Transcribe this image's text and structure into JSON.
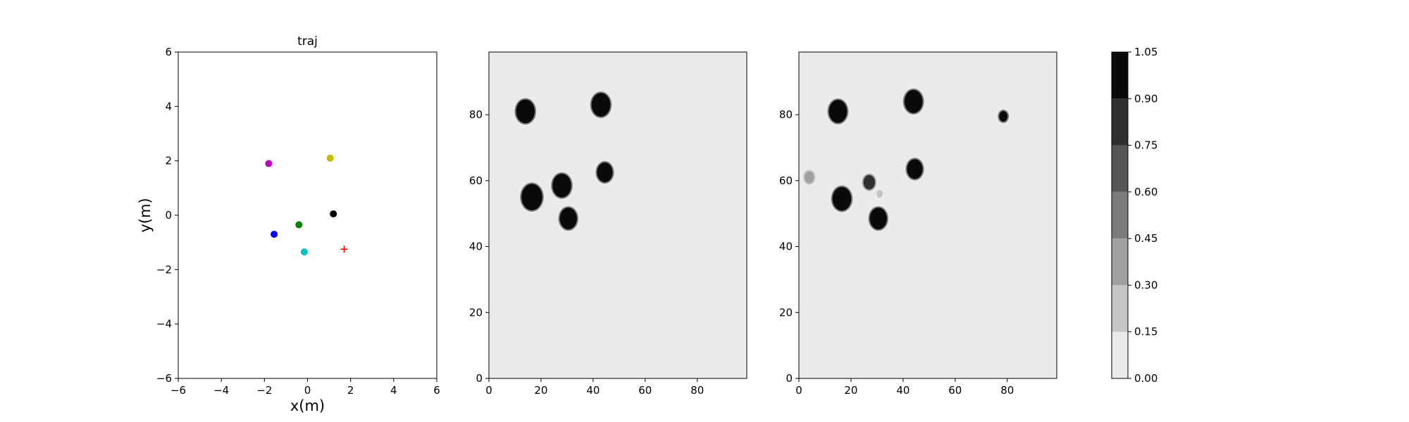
{
  "figure": {
    "panels": [
      {
        "key": "traj",
        "title": "traj",
        "xlabel": "x(m)",
        "ylabel": "y(m)"
      },
      {
        "key": "map_true",
        "title": "",
        "xlabel": "",
        "ylabel": ""
      },
      {
        "key": "map_est",
        "title": "",
        "xlabel": "",
        "ylabel": ""
      }
    ]
  },
  "chart_data": [
    {
      "type": "scatter",
      "title": "traj",
      "xlabel": "x(m)",
      "ylabel": "y(m)",
      "xlim": [
        -6,
        6
      ],
      "ylim": [
        -6,
        6
      ],
      "xticks": [
        "−6",
        "−4",
        "−2",
        "0",
        "2",
        "4",
        "6"
      ],
      "yticks": [
        "−6",
        "−4",
        "−2",
        "0",
        "2",
        "4",
        "6"
      ],
      "grid": false,
      "points": [
        {
          "x": -1.8,
          "y": 1.9,
          "color": "#bf00bf",
          "marker": "circle"
        },
        {
          "x": 1.05,
          "y": 2.1,
          "color": "#bfbf00",
          "marker": "circle"
        },
        {
          "x": -0.4,
          "y": -0.35,
          "color": "#008000",
          "marker": "circle"
        },
        {
          "x": 1.2,
          "y": 0.05,
          "color": "#000000",
          "marker": "circle"
        },
        {
          "x": -1.55,
          "y": -0.7,
          "color": "#0000ff",
          "marker": "circle"
        },
        {
          "x": -0.15,
          "y": -1.35,
          "color": "#00bfbf",
          "marker": "circle"
        },
        {
          "x": 1.7,
          "y": -1.25,
          "color": "#ff0000",
          "marker": "plus"
        }
      ]
    },
    {
      "type": "heatmap",
      "title": "",
      "xlim": [
        0,
        99
      ],
      "ylim": [
        0,
        99
      ],
      "xticks": [
        "0",
        "20",
        "40",
        "60",
        "80"
      ],
      "yticks": [
        "0",
        "20",
        "40",
        "60",
        "80"
      ],
      "background_value": 0.0,
      "blobs": [
        {
          "cx": 14,
          "cy": 81,
          "r": 3.6,
          "value": 1.0
        },
        {
          "cx": 43,
          "cy": 83,
          "r": 3.6,
          "value": 1.0
        },
        {
          "cx": 16.5,
          "cy": 55,
          "r": 4.0,
          "value": 1.0
        },
        {
          "cx": 28,
          "cy": 58.5,
          "r": 3.6,
          "value": 1.0
        },
        {
          "cx": 44.5,
          "cy": 62.5,
          "r": 3.0,
          "value": 1.0
        },
        {
          "cx": 30.5,
          "cy": 48.5,
          "r": 3.3,
          "value": 1.0
        }
      ]
    },
    {
      "type": "heatmap",
      "title": "",
      "xlim": [
        0,
        99
      ],
      "ylim": [
        0,
        99
      ],
      "xticks": [
        "0",
        "20",
        "40",
        "60",
        "80"
      ],
      "yticks": [
        "0",
        "20",
        "40",
        "60",
        "80"
      ],
      "background_value": 0.0,
      "blobs": [
        {
          "cx": 15,
          "cy": 81,
          "r": 3.5,
          "value": 1.0
        },
        {
          "cx": 44,
          "cy": 84,
          "r": 3.5,
          "value": 1.0
        },
        {
          "cx": 16.5,
          "cy": 54.5,
          "r": 3.6,
          "value": 1.0
        },
        {
          "cx": 44.5,
          "cy": 63.5,
          "r": 3.0,
          "value": 1.0
        },
        {
          "cx": 30.5,
          "cy": 48.5,
          "r": 3.3,
          "value": 1.0
        },
        {
          "cx": 27,
          "cy": 59.5,
          "r": 2.2,
          "value": 0.85
        },
        {
          "cx": 78.5,
          "cy": 79.5,
          "r": 1.6,
          "value": 0.9
        },
        {
          "cx": 4,
          "cy": 61,
          "r": 1.8,
          "value": 0.3
        },
        {
          "cx": 31,
          "cy": 56,
          "r": 1.2,
          "value": 0.25
        }
      ]
    },
    {
      "type": "colorbar",
      "vlim": [
        0.0,
        1.05
      ],
      "levels": [
        0.0,
        0.15,
        0.3,
        0.45,
        0.6,
        0.75,
        0.9,
        1.05
      ],
      "level_labels": [
        "0.00",
        "0.15",
        "0.30",
        "0.45",
        "0.60",
        "0.75",
        "0.90",
        "1.05"
      ],
      "colors": [
        "#ebebeb",
        "#c6c6c6",
        "#a0a0a0",
        "#7b7b7b",
        "#555555",
        "#303030",
        "#0a0a0a"
      ]
    }
  ]
}
